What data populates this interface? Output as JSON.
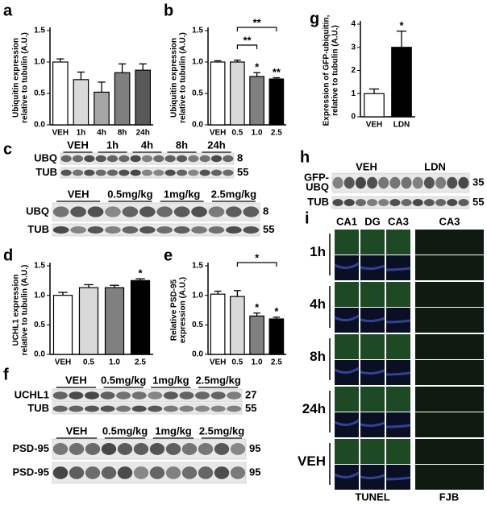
{
  "chart_data": [
    {
      "type": "bar",
      "label": "a",
      "ylabel": [
        "Ubiquitin expression",
        "relative to tubulin (A.U.)"
      ],
      "categories": [
        "VEH",
        "1h",
        "4h",
        "8h",
        "24h"
      ],
      "values": [
        1.0,
        0.72,
        0.52,
        0.83,
        0.87
      ],
      "errors": [
        0.05,
        0.12,
        0.16,
        0.14,
        0.1
      ],
      "colors": [
        "#ffffff",
        "#d9d9d9",
        "#a6a6a6",
        "#7f7f7f",
        "#595959"
      ],
      "ylim": [
        0,
        1.5
      ],
      "yticks": [
        {
          "value": 0,
          "label": "0.0"
        },
        0.5,
        {
          "value": 1,
          "label": "1.0"
        },
        1.5
      ],
      "annotations": []
    },
    {
      "type": "bar",
      "label": "b",
      "ylabel": [
        "Ubiquitin expression",
        "relative to tubulin (A.U.)"
      ],
      "categories": [
        "VEH",
        "0.5",
        "1.0",
        "2.5"
      ],
      "values": [
        1.0,
        1.0,
        0.77,
        0.73
      ],
      "errors": [
        0.02,
        0.03,
        0.06,
        0.02
      ],
      "colors": [
        "#ffffff",
        "#d9d9d9",
        "#808080",
        "#000000"
      ],
      "ylim": [
        0,
        1.5
      ],
      "yticks": [
        {
          "value": 0,
          "label": "0.0"
        },
        0.5,
        {
          "value": 1,
          "label": "1.0"
        },
        1.5
      ],
      "annotations": [
        "*",
        "**",
        "**",
        "**"
      ]
    },
    {
      "type": "bar",
      "label": "g",
      "ylabel": [
        "Expression of  GFP-ubiquitin,",
        "relative to tubulin (A.U.)"
      ],
      "categories": [
        "VEH",
        "LDN"
      ],
      "values": [
        1.0,
        3.0
      ],
      "errors": [
        0.2,
        0.7
      ],
      "colors": [
        "#ffffff",
        "#000000"
      ],
      "ylim": [
        0,
        4
      ],
      "yticks": [
        0,
        1,
        2,
        3,
        4
      ],
      "annotations": [
        "*"
      ]
    },
    {
      "type": "bar",
      "label": "d",
      "ylabel": [
        "UCHL1 expression",
        "relative to tubulin (A.U.)"
      ],
      "categories": [
        "VEH",
        "0.5",
        "1.0",
        "2.5"
      ],
      "values": [
        1.0,
        1.13,
        1.13,
        1.25
      ],
      "errors": [
        0.05,
        0.05,
        0.04,
        0.03
      ],
      "colors": [
        "#ffffff",
        "#d9d9d9",
        "#808080",
        "#000000"
      ],
      "ylim": [
        0,
        1.5
      ],
      "yticks": [
        {
          "value": 0,
          "label": "0.0"
        },
        0.5,
        {
          "value": 1,
          "label": "1.0"
        },
        1.5
      ],
      "annotations": [
        "*"
      ]
    },
    {
      "type": "bar",
      "label": "e",
      "ylabel": [
        "Relative PSD-95",
        "expression (A.U.)"
      ],
      "categories": [
        "VEH",
        "0.5",
        "1.0",
        "2.5"
      ],
      "values": [
        1.02,
        0.98,
        0.65,
        0.6
      ],
      "errors": [
        0.05,
        0.1,
        0.05,
        0.03
      ],
      "colors": [
        "#ffffff",
        "#d9d9d9",
        "#808080",
        "#000000"
      ],
      "ylim": [
        0,
        1.5
      ],
      "yticks": [
        {
          "value": 0,
          "label": "0.0"
        },
        0.5,
        {
          "value": 1,
          "label": "1.0"
        },
        1.5
      ],
      "annotations": [
        "*",
        "*",
        "*"
      ]
    }
  ],
  "panels": {
    "c": "c",
    "f": "f",
    "h": "h",
    "i": "i"
  },
  "blots": [
    {
      "lanes": [
        "VEH",
        "1h",
        "4h",
        "8h",
        "24h"
      ],
      "rows": [
        [
          "UBQ"
        ],
        [
          "TUB"
        ]
      ],
      "sizes": [
        "8",
        "55"
      ]
    },
    {
      "lanes": [
        "VEH",
        "0.5mg/kg",
        "1mg/kg",
        "2.5mg/kg"
      ],
      "rows": [
        [
          "UBQ"
        ],
        [
          "TUB"
        ]
      ],
      "sizes": [
        "8",
        "55"
      ]
    },
    {
      "lanes": [
        "VEH",
        "0.5mg/kg",
        "1mg/kg",
        "2.5mg/kg"
      ],
      "rows": [
        [
          "UCHL1"
        ],
        [
          "TUB"
        ]
      ],
      "sizes": [
        "27",
        "55"
      ]
    },
    {
      "lanes": [
        "VEH",
        "0.5mg/kg",
        "1mg/kg",
        "2.5mg/kg"
      ],
      "rows": [
        [
          "PSD-95"
        ],
        [
          "PSD-95"
        ]
      ],
      "sizes": [
        "95",
        "95"
      ]
    },
    {
      "lanes": [
        "VEH",
        "LDN"
      ],
      "rows": [
        [
          "GFP-",
          "UBQ"
        ],
        [
          "TUB"
        ]
      ],
      "sizes": [
        "35",
        "55"
      ]
    }
  ],
  "images": {
    "columns": [
      "CA1",
      "DG",
      "CA3",
      "CA3"
    ],
    "rows": [
      "1h",
      "4h",
      "8h",
      "24h",
      "VEH"
    ],
    "stains": [
      "TUNEL",
      "FJB"
    ]
  }
}
